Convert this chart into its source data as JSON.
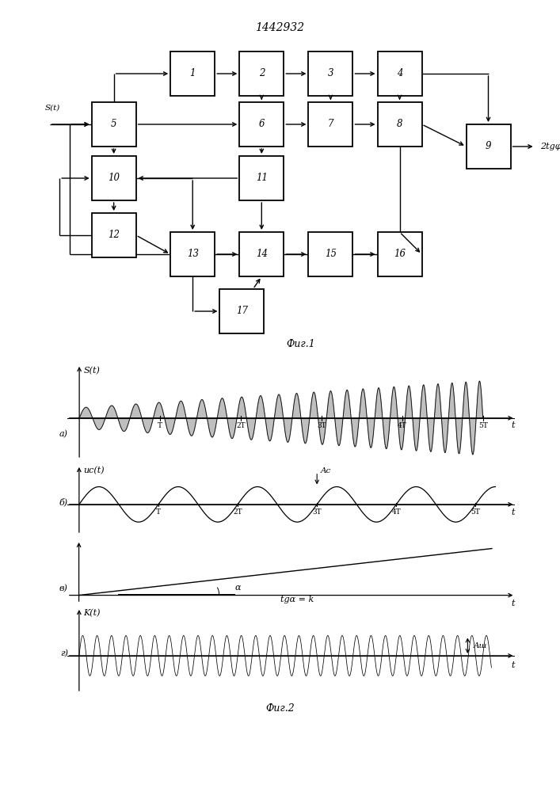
{
  "title": "1442932",
  "fig1_caption": "Фиг.1",
  "fig2_caption": "Фиг.2",
  "background_color": "#ffffff",
  "line_color": "#000000"
}
